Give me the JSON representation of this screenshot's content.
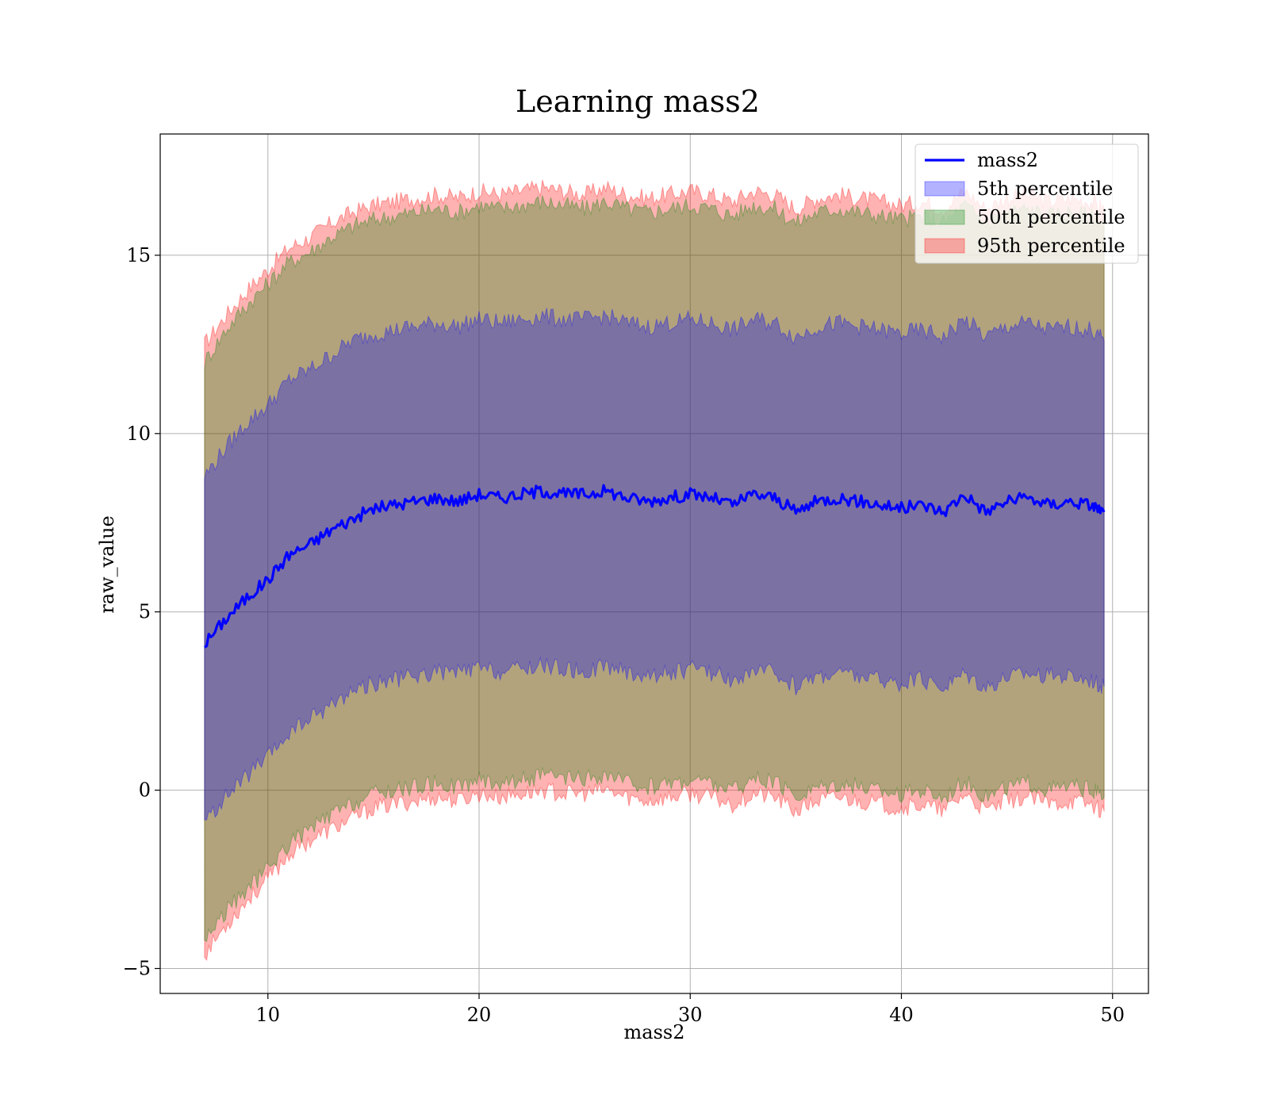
{
  "chart_data": {
    "type": "area",
    "title": "Learning mass2",
    "xlabel": "mass2",
    "ylabel": "raw_value",
    "xlim": [
      4.9,
      51.7
    ],
    "ylim": [
      -5.7,
      18.4
    ],
    "xticks": [
      10,
      20,
      30,
      40,
      50
    ],
    "xtick_labels": [
      "10",
      "20",
      "30",
      "40",
      "50"
    ],
    "yticks": [
      -5,
      0,
      5,
      10,
      15
    ],
    "ytick_labels": [
      "−5",
      "0",
      "5",
      "10",
      "15"
    ],
    "grid": true,
    "legend_position": "top-right",
    "x": [
      7.0,
      8.0,
      9.0,
      10.0,
      11.0,
      12.0,
      13.0,
      14.0,
      15.0,
      16.0,
      17.0,
      18.0,
      19.0,
      20.0,
      21.0,
      22.0,
      23.0,
      24.0,
      25.0,
      26.0,
      27.0,
      28.0,
      29.0,
      30.0,
      31.0,
      32.0,
      33.0,
      34.0,
      35.0,
      36.0,
      37.0,
      38.0,
      39.0,
      40.0,
      41.0,
      42.0,
      43.0,
      44.0,
      45.0,
      46.0,
      47.0,
      48.0,
      49.0,
      49.6
    ],
    "series": [
      {
        "name": "mass2",
        "kind": "line",
        "color": "#0000ff",
        "values": [
          4.1,
          4.8,
          5.4,
          5.9,
          6.6,
          6.9,
          7.3,
          7.6,
          7.9,
          8.0,
          8.1,
          8.2,
          8.1,
          8.3,
          8.2,
          8.3,
          8.4,
          8.3,
          8.3,
          8.4,
          8.2,
          8.1,
          8.2,
          8.3,
          8.2,
          8.0,
          8.3,
          8.2,
          7.8,
          8.1,
          8.2,
          8.1,
          8.0,
          7.9,
          8.0,
          7.8,
          8.3,
          7.8,
          8.1,
          8.2,
          8.0,
          8.1,
          8.0,
          7.8
        ]
      },
      {
        "name": "5th percentile",
        "kind": "band",
        "color": "#0000ff",
        "lower": [
          -0.9,
          -0.2,
          0.4,
          0.9,
          1.6,
          2.0,
          2.4,
          2.8,
          3.0,
          3.1,
          3.2,
          3.3,
          3.3,
          3.4,
          3.3,
          3.4,
          3.5,
          3.4,
          3.3,
          3.5,
          3.3,
          3.2,
          3.3,
          3.4,
          3.3,
          3.1,
          3.3,
          3.3,
          2.9,
          3.2,
          3.3,
          3.2,
          3.1,
          3.0,
          3.1,
          2.9,
          3.3,
          2.9,
          3.2,
          3.3,
          3.2,
          3.2,
          3.1,
          2.9
        ],
        "upper": [
          8.8,
          9.6,
          10.3,
          10.8,
          11.5,
          11.8,
          12.2,
          12.6,
          12.8,
          12.9,
          13.0,
          13.1,
          13.0,
          13.2,
          13.1,
          13.2,
          13.3,
          13.2,
          13.2,
          13.3,
          13.1,
          13.0,
          13.1,
          13.2,
          13.1,
          12.9,
          13.2,
          13.1,
          12.7,
          13.0,
          13.1,
          13.0,
          12.9,
          12.8,
          12.9,
          12.7,
          13.2,
          12.7,
          13.0,
          13.1,
          12.9,
          13.0,
          12.9,
          12.6
        ]
      },
      {
        "name": "50th percentile",
        "kind": "band",
        "color": "#008000",
        "lower": [
          -4.2,
          -3.4,
          -2.8,
          -2.2,
          -1.5,
          -1.1,
          -0.7,
          -0.4,
          -0.1,
          0.0,
          0.1,
          0.2,
          0.1,
          0.3,
          0.2,
          0.3,
          0.4,
          0.3,
          0.3,
          0.4,
          0.2,
          0.1,
          0.2,
          0.3,
          0.2,
          0.0,
          0.3,
          0.2,
          -0.2,
          0.1,
          0.2,
          0.1,
          0.0,
          -0.1,
          0.0,
          -0.2,
          0.3,
          -0.2,
          0.1,
          0.2,
          0.0,
          0.1,
          0.0,
          -0.2
        ],
        "upper": [
          12.0,
          12.9,
          13.6,
          14.2,
          14.8,
          15.1,
          15.5,
          15.8,
          16.0,
          16.1,
          16.2,
          16.3,
          16.2,
          16.4,
          16.3,
          16.4,
          16.5,
          16.4,
          16.3,
          16.5,
          16.3,
          16.2,
          16.3,
          16.4,
          16.3,
          16.1,
          16.4,
          16.3,
          15.9,
          16.2,
          16.3,
          16.2,
          16.1,
          16.0,
          16.1,
          15.9,
          16.4,
          15.9,
          16.2,
          16.3,
          16.1,
          16.2,
          16.1,
          15.9
        ]
      },
      {
        "name": "95th percentile",
        "kind": "band",
        "color": "#ff0000",
        "lower": [
          -4.6,
          -3.8,
          -3.1,
          -2.5,
          -1.8,
          -1.4,
          -1.1,
          -0.8,
          -0.5,
          -0.4,
          -0.3,
          -0.2,
          -0.3,
          -0.1,
          -0.2,
          -0.1,
          0.0,
          -0.1,
          -0.1,
          0.0,
          -0.2,
          -0.3,
          -0.2,
          -0.1,
          -0.2,
          -0.4,
          -0.1,
          -0.2,
          -0.6,
          -0.3,
          -0.2,
          -0.3,
          -0.4,
          -0.5,
          -0.4,
          -0.6,
          -0.1,
          -0.6,
          -0.3,
          -0.2,
          -0.4,
          -0.3,
          -0.4,
          -0.6
        ],
        "upper": [
          12.5,
          13.3,
          14.0,
          14.6,
          15.2,
          15.5,
          15.9,
          16.2,
          16.4,
          16.5,
          16.6,
          16.7,
          16.6,
          16.8,
          16.7,
          16.8,
          16.9,
          16.8,
          16.7,
          16.9,
          16.7,
          16.6,
          16.7,
          16.8,
          16.7,
          16.5,
          16.8,
          16.7,
          16.3,
          16.6,
          16.7,
          16.6,
          16.5,
          16.4,
          16.5,
          16.3,
          16.8,
          16.3,
          16.6,
          16.7,
          16.5,
          16.6,
          16.5,
          16.3
        ]
      }
    ]
  }
}
